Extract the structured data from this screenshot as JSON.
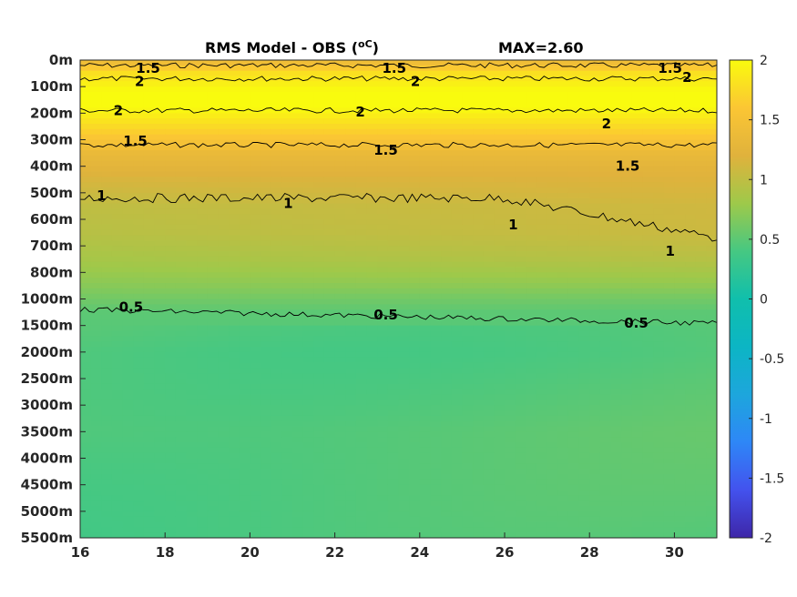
{
  "chart_data": {
    "type": "heatmap",
    "title": "RMS Model - OBS (",
    "title_unit": "oC",
    "title_close": ")",
    "max_label": "MAX=2.60",
    "x_ticks": [
      "16",
      "18",
      "20",
      "22",
      "24",
      "26",
      "28",
      "30"
    ],
    "x_tick_values": [
      16,
      18,
      20,
      22,
      24,
      26,
      28,
      30
    ],
    "xlim": [
      16,
      31
    ],
    "y_ticks": [
      "0m",
      "100m",
      "200m",
      "300m",
      "400m",
      "500m",
      "600m",
      "700m",
      "800m",
      "1000m",
      "1500m",
      "2000m",
      "2500m",
      "3000m",
      "3500m",
      "4000m",
      "4500m",
      "5000m",
      "5500m"
    ],
    "colorbar": {
      "ticks": [
        "2",
        "1.5",
        "1",
        "0.5",
        "0",
        "-0.5",
        "-1",
        "-1.5",
        "-2"
      ],
      "tick_values": [
        2,
        1.5,
        1,
        0.5,
        0,
        -0.5,
        -1,
        -1.5,
        -2
      ],
      "clim": [
        -2,
        2
      ],
      "colormap": "parula"
    },
    "contour_levels": [
      0.5,
      1,
      1.5,
      2
    ],
    "contours": [
      {
        "level": 1.5,
        "label": "1.5",
        "depth_index": 0.2
      },
      {
        "level": 2,
        "label": "2",
        "depth_index": 0.7
      },
      {
        "level": 2,
        "label": "2",
        "depth_index": 1.9
      },
      {
        "level": 1.5,
        "label": "1.5",
        "depth_index": 3.2
      },
      {
        "level": 1,
        "label": "1",
        "depth_index": 5.2
      },
      {
        "level": 0.5,
        "label": "0.5",
        "depth_index": 9.4
      }
    ],
    "contour_labels": [
      {
        "text": "1.5",
        "x": 17.6,
        "depth_index": 0.3
      },
      {
        "text": "1.5",
        "x": 23.4,
        "depth_index": 0.3
      },
      {
        "text": "1.5",
        "x": 29.9,
        "depth_index": 0.3
      },
      {
        "text": "2",
        "x": 17.4,
        "depth_index": 0.8
      },
      {
        "text": "2",
        "x": 23.9,
        "depth_index": 0.8
      },
      {
        "text": "2",
        "x": 30.3,
        "depth_index": 0.65
      },
      {
        "text": "2",
        "x": 16.9,
        "depth_index": 1.9
      },
      {
        "text": "2",
        "x": 22.6,
        "depth_index": 1.95
      },
      {
        "text": "2",
        "x": 28.4,
        "depth_index": 2.4
      },
      {
        "text": "1.5",
        "x": 17.3,
        "depth_index": 3.05
      },
      {
        "text": "1.5",
        "x": 23.2,
        "depth_index": 3.4
      },
      {
        "text": "1.5",
        "x": 28.9,
        "depth_index": 4.0
      },
      {
        "text": "1",
        "x": 16.5,
        "depth_index": 5.1
      },
      {
        "text": "1",
        "x": 20.9,
        "depth_index": 5.4
      },
      {
        "text": "1",
        "x": 26.2,
        "depth_index": 6.2
      },
      {
        "text": "1",
        "x": 29.9,
        "depth_index": 7.2
      },
      {
        "text": "0.5",
        "x": 17.2,
        "depth_index": 9.3
      },
      {
        "text": "0.5",
        "x": 23.2,
        "depth_index": 9.6
      },
      {
        "text": "0.5",
        "x": 29.1,
        "depth_index": 9.9
      }
    ],
    "depth_profile": [
      {
        "depth_index": 0,
        "value": 1.35
      },
      {
        "depth_index": 0.5,
        "value": 1.8
      },
      {
        "depth_index": 1.5,
        "value": 2.1
      },
      {
        "depth_index": 2.5,
        "value": 1.75
      },
      {
        "depth_index": 3.5,
        "value": 1.35
      },
      {
        "depth_index": 4.5,
        "value": 1.15
      },
      {
        "depth_index": 5.5,
        "value": 1.0
      },
      {
        "depth_index": 6.5,
        "value": 0.95
      },
      {
        "depth_index": 7.5,
        "value": 0.85
      },
      {
        "depth_index": 8.5,
        "value": 0.7
      },
      {
        "depth_index": 9.5,
        "value": 0.5
      },
      {
        "depth_index": 11,
        "value": 0.45
      },
      {
        "depth_index": 14,
        "value": 0.5
      },
      {
        "depth_index": 18,
        "value": 0.42
      }
    ]
  }
}
